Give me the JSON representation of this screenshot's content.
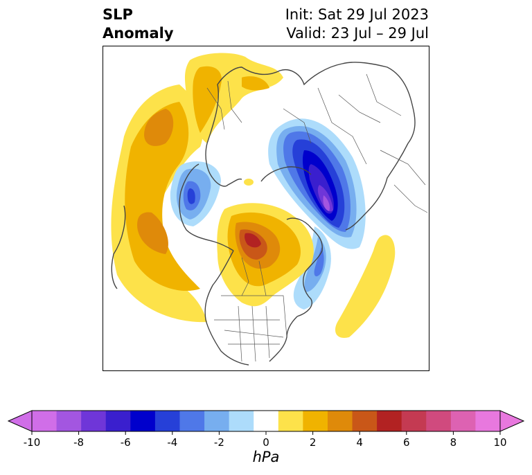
{
  "title": {
    "left_line1": "SLP",
    "left_line2": "Anomaly",
    "right_line1": "Init: Sat 29 Jul 2023",
    "right_line2": "Valid: 23 Jul – 29 Jul"
  },
  "map": {
    "projection": "north-polar-stereographic",
    "features": [
      "coastlines",
      "country borders",
      "US state borders",
      "Canadian province borders"
    ],
    "anomalies": [
      {
        "region": "Central Arctic / Canadian Arctic Archipelago",
        "sign": "positive",
        "peak_hpa": 6
      },
      {
        "region": "North Atlantic to Scandinavia",
        "sign": "positive",
        "peak_hpa": 3
      },
      {
        "region": "North Pacific / Gulf of Alaska",
        "sign": "positive",
        "peak_hpa": 4
      },
      {
        "region": "Western North Atlantic",
        "sign": "positive",
        "peak_hpa": 2
      },
      {
        "region": "Northern Siberia / Kara Sea",
        "sign": "negative",
        "peak_hpa": -8
      },
      {
        "region": "Bering Sea / Eastern Siberia",
        "sign": "negative",
        "peak_hpa": -5
      },
      {
        "region": "Greenland / Labrador",
        "sign": "negative",
        "peak_hpa": -3
      }
    ]
  },
  "colorbar": {
    "ticks": [
      "-10",
      "-8",
      "-6",
      "-4",
      "-2",
      "0",
      "2",
      "4",
      "6",
      "8",
      "10"
    ],
    "unit": "hPa",
    "levels": [
      -10,
      -9,
      -8,
      -7,
      -6,
      -5,
      -4,
      -3,
      -2,
      -1,
      1,
      2,
      3,
      4,
      5,
      6,
      7,
      8,
      9,
      10
    ],
    "colors": [
      "#d06ee8",
      "#a356e0",
      "#6f36d8",
      "#3a1fce",
      "#0000cc",
      "#2640d8",
      "#4f78e8",
      "#77aeef",
      "#addcfb",
      "#ffffff",
      "#fde24a",
      "#f0b300",
      "#df8a0a",
      "#c95718",
      "#b22222",
      "#c43a52",
      "#d04a7e",
      "#dd62b2",
      "#e878de"
    ],
    "extend": "both"
  }
}
